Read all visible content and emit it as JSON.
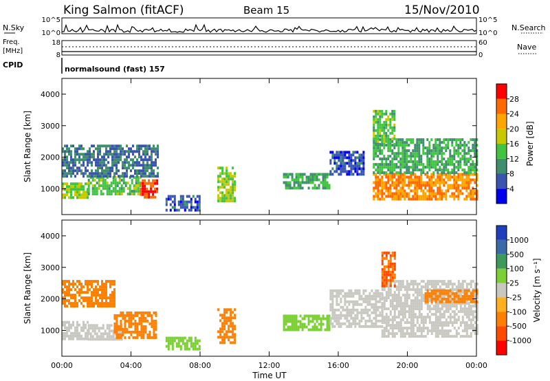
{
  "header": {
    "station": "King Salmon (fitACF)",
    "beam": "Beam 15",
    "date": "15/Nov/2010"
  },
  "summary_panels": {
    "nsky_label": "N.Sky",
    "nsearch_label": "N.Search",
    "nsky_ticks": [
      "10^5",
      "10^0"
    ],
    "nsearch_ticks": [
      "10^5",
      "10^0"
    ],
    "freq_label_line1": "Freq.",
    "freq_label_line2": "[MHz]",
    "freq_ticks": [
      "18",
      "8"
    ],
    "nave_label": "Nave",
    "nave_ticks": [
      "60",
      "0"
    ],
    "cpid_label": "CPID",
    "cpid_text": "normalsound (fast) 157"
  },
  "chart_data": [
    {
      "type": "heatmap",
      "panel": "power",
      "ylabel": "Slant Range [km]",
      "xlabel": "",
      "x_range_hours": [
        0,
        24
      ],
      "ylim": [
        180,
        4500
      ],
      "yticks": [
        "1000",
        "2000",
        "3000",
        "4000"
      ],
      "colorbar": {
        "label": "Power [dB]",
        "ticks": [
          "4",
          "8",
          "12",
          "16",
          "20",
          "24",
          "28"
        ],
        "colors": [
          "#0000ee",
          "#3a55b0",
          "#3f8f6c",
          "#42c442",
          "#c8c800",
          "#ffa500",
          "#ff6a00",
          "#ff0000"
        ]
      },
      "background_color": "#ffffff",
      "echo_regions": [
        {
          "start_hour": 0.0,
          "end_hour": 1.5,
          "range_min": 700,
          "range_max": 1200,
          "value": 16
        },
        {
          "start_hour": 1.5,
          "end_hour": 4.5,
          "range_min": 800,
          "range_max": 1400,
          "value": 14
        },
        {
          "start_hour": 4.5,
          "end_hour": 5.5,
          "range_min": 700,
          "range_max": 1300,
          "value": 28
        },
        {
          "start_hour": 0.0,
          "end_hour": 5.5,
          "range_min": 1400,
          "range_max": 2400,
          "value": 8
        },
        {
          "start_hour": 6.0,
          "end_hour": 8.0,
          "range_min": 300,
          "range_max": 800,
          "value": 6
        },
        {
          "start_hour": 9.0,
          "end_hour": 10.0,
          "range_min": 600,
          "range_max": 1700,
          "value": 16
        },
        {
          "start_hour": 12.8,
          "end_hour": 15.5,
          "range_min": 1000,
          "range_max": 1500,
          "value": 12
        },
        {
          "start_hour": 15.5,
          "end_hour": 17.5,
          "range_min": 1500,
          "range_max": 2200,
          "value": 6
        },
        {
          "start_hour": 18.0,
          "end_hour": 24.0,
          "range_min": 700,
          "range_max": 1500,
          "value": 24
        },
        {
          "start_hour": 18.0,
          "end_hour": 24.0,
          "range_min": 1500,
          "range_max": 2600,
          "value": 12
        },
        {
          "start_hour": 18.0,
          "end_hour": 19.2,
          "range_min": 2400,
          "range_max": 3500,
          "value": 14
        }
      ]
    },
    {
      "type": "heatmap",
      "panel": "velocity",
      "ylabel": "Slant Range [km]",
      "xlabel": "Time UT",
      "x_range_hours": [
        0,
        24
      ],
      "ylim": [
        180,
        4500
      ],
      "yticks": [
        "1000",
        "2000",
        "3000",
        "4000"
      ],
      "xticks": [
        "00:00",
        "04:00",
        "08:00",
        "12:00",
        "16:00",
        "20:00",
        "00:00"
      ],
      "colorbar": {
        "label": "Velocity [m s⁻¹]",
        "ticks": [
          "1000",
          "500",
          "100",
          "25",
          "-25",
          "-100",
          "-500",
          "-1000"
        ],
        "colors": [
          "#1e3fbd",
          "#3a6aa8",
          "#3c9a5a",
          "#7ccf35",
          "#c8c8c0",
          "#ffb01e",
          "#ff7f00",
          "#ff4a00",
          "#ff0000"
        ]
      },
      "background_color": "#ffffff",
      "echo_regions": [
        {
          "start_hour": 0.0,
          "end_hour": 1.5,
          "range_min": 700,
          "range_max": 1300,
          "value": 0
        },
        {
          "start_hour": 1.5,
          "end_hour": 3.5,
          "range_min": 700,
          "range_max": 1200,
          "value": 0
        },
        {
          "start_hour": 3.0,
          "end_hour": 5.5,
          "range_min": 800,
          "range_max": 1600,
          "value": -300
        },
        {
          "start_hour": 0.0,
          "end_hour": 3.0,
          "range_min": 1800,
          "range_max": 2600,
          "value": -150
        },
        {
          "start_hour": 6.0,
          "end_hour": 8.0,
          "range_min": 400,
          "range_max": 800,
          "value": 80
        },
        {
          "start_hour": 9.0,
          "end_hour": 10.0,
          "range_min": 600,
          "range_max": 1700,
          "value": -150
        },
        {
          "start_hour": 12.8,
          "end_hour": 15.5,
          "range_min": 1000,
          "range_max": 1500,
          "value": 60
        },
        {
          "start_hour": 15.5,
          "end_hour": 18.5,
          "range_min": 1100,
          "range_max": 2300,
          "value": 0
        },
        {
          "start_hour": 18.5,
          "end_hour": 24.0,
          "range_min": 800,
          "range_max": 2600,
          "value": 0
        },
        {
          "start_hour": 18.5,
          "end_hour": 19.3,
          "range_min": 2400,
          "range_max": 3500,
          "value": -500
        },
        {
          "start_hour": 21.0,
          "end_hour": 24.0,
          "range_min": 1900,
          "range_max": 2300,
          "value": -200
        }
      ]
    }
  ]
}
